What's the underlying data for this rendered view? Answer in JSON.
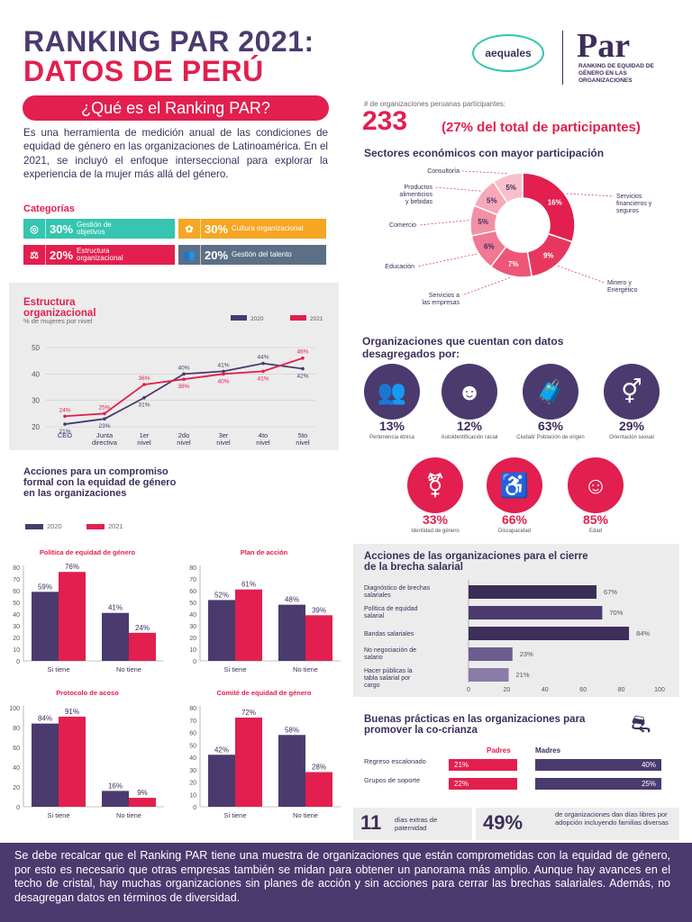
{
  "header": {
    "title_line1": "RANKING PAR 2021:",
    "title_line2": "DATOS DE PERÚ",
    "logo_aequales": "aequales",
    "logo_par": "Par",
    "logo_par_subtitle": "RANKING DE EQUIDAD DE GÉNERO EN LAS ORGANIZACIONES"
  },
  "intro": {
    "heading": "¿Qué es el Ranking PAR?",
    "text": "Es una herramienta de medición anual de las condiciones de equidad de género en las organizaciones de Latinoamérica. En el 2021, se incluyó el enfoque interseccional para explorar la experiencia de la mujer más allá del género."
  },
  "categories": {
    "title": "Categorías",
    "items": [
      {
        "pct": "30%",
        "label": "Gestión de objetivos",
        "color": "#35c5b0",
        "icon": "target-icon"
      },
      {
        "pct": "30%",
        "label": "Cultura organizacional",
        "color": "#f5a623",
        "icon": "culture-icon"
      },
      {
        "pct": "20%",
        "label": "Estructura organizacional",
        "color": "#e21f4e",
        "icon": "balance-icon"
      },
      {
        "pct": "20%",
        "label": "Gestión del talento",
        "color": "#5b6f86",
        "icon": "people-icon"
      }
    ]
  },
  "participants": {
    "label": "# de organizaciones peruanas participantes:",
    "count": "233",
    "share": "(27% del total de participantes)"
  },
  "sectors": {
    "title": "Sectores económicos con mayor participación"
  },
  "structure_chart_labels": {
    "title": "Estructura organizacional",
    "subtitle": "% de mujeres por nivel"
  },
  "actions_formal": {
    "title": "Acciones para un compromiso formal con la equidad de género en las organizaciones",
    "legend_2020": "2020",
    "legend_2021": "2021"
  },
  "disaggregated": {
    "title": "Organizaciones que cuentan con datos desagregados por:",
    "items": [
      {
        "pct": "13%",
        "label": "Pertenencia étnica",
        "color": "#4a3a6e",
        "icon": "people-group-icon"
      },
      {
        "pct": "12%",
        "label": "Autoidentificación racial",
        "color": "#4a3a6e",
        "icon": "person-curly-icon"
      },
      {
        "pct": "63%",
        "label": "Ciudad/ Población de origen",
        "color": "#4a3a6e",
        "icon": "traveler-icon"
      },
      {
        "pct": "29%",
        "label": "Orientación sexual",
        "color": "#4a3a6e",
        "icon": "gender-symbols-icon"
      },
      {
        "pct": "33%",
        "label": "Identidad de género",
        "color": "#e21f4e",
        "icon": "gender-identity-icon"
      },
      {
        "pct": "66%",
        "label": "Discapacidad",
        "color": "#e21f4e",
        "icon": "wheelchair-icon"
      },
      {
        "pct": "85%",
        "label": "Edad",
        "color": "#e21f4e",
        "icon": "age-faces-icon"
      }
    ]
  },
  "wage_gap": {
    "title": "Acciones de las organizaciones para el cierre de la brecha salarial"
  },
  "childcare": {
    "title": "Buenas prácticas en las organizaciones para promover la co-crianza",
    "col_fathers": "Padres",
    "col_mothers": "Madres",
    "rows": [
      {
        "label": "Regreso escalonado",
        "padres": "21%",
        "madres": "40%",
        "padres_value": 21,
        "madres_value": 40
      },
      {
        "label": "Grupos de soporte",
        "padres": "22%",
        "madres": "25%",
        "padres_value": 22,
        "madres_value": 25
      }
    ]
  },
  "kpis": {
    "days_value": "11",
    "days_label": "días extras de paternidad",
    "share_value": "49%",
    "share_label": "de organizaciones dan días libres por adopción incluyendo familias diversas"
  },
  "footer": {
    "text": "Se debe recalcar que el Ranking PAR tiene una muestra de organizaciones que están comprometidas con la equidad de género, por esto es necesario que otras empresas también se midan para obtener un panorama  más amplio.  Aunque hay avances en el techo de cristal, hay muchas organizaciones sin planes de acción y sin acciones para cerrar las brechas salariales. Además, no desagregan datos en términos de diversidad."
  },
  "colors": {
    "purple": "#4a3a6e",
    "red": "#e21f4e",
    "light_red": "#f08fa6"
  },
  "chart_data": [
    {
      "id": "sectors",
      "type": "pie",
      "title": "Sectores económicos con mayor participación",
      "slices": [
        {
          "label": "Servicios financieros y seguros",
          "value": 16,
          "text": "16%",
          "color": "#e21f4e"
        },
        {
          "label": "Minero y Energético",
          "value": 9,
          "text": "9%",
          "color": "#e8375f"
        },
        {
          "label": "Servicios a las empresas",
          "value": 7,
          "text": "7%",
          "color": "#ee5577"
        },
        {
          "label": "Educación",
          "value": 6,
          "text": "6%",
          "color": "#f17792"
        },
        {
          "label": "Comercio",
          "value": 5,
          "text": "5%",
          "color": "#f490a6"
        },
        {
          "label": "Productos alimenticios y bebidas",
          "value": 5,
          "text": "5%",
          "color": "#f7a9ba"
        },
        {
          "label": "Consultoría",
          "value": 5,
          "text": "5%",
          "color": "#f9c0cc"
        }
      ]
    },
    {
      "id": "structure",
      "type": "line",
      "title": "Estructura organizacional",
      "ylabel": "% de mujeres por nivel",
      "categories": [
        "CEO",
        "Junta directiva",
        "1er nivel",
        "2do nivel",
        "3er nivel",
        "4to nivel",
        "5to nivel"
      ],
      "ylim": [
        20,
        50
      ],
      "yticks": [
        20,
        30,
        40,
        50
      ],
      "series": [
        {
          "name": "2020",
          "values": [
            21,
            23,
            31,
            40,
            41,
            44,
            42
          ],
          "color": "#4a3a6e"
        },
        {
          "name": "2021",
          "values": [
            24,
            25,
            36,
            38,
            40,
            41,
            46
          ],
          "color": "#e21f4e"
        }
      ]
    },
    {
      "id": "politica",
      "type": "bar",
      "title": "Política de equidad de género",
      "categories": [
        "Si tiene",
        "No tiene"
      ],
      "ylim": [
        0,
        80
      ],
      "yticks": [
        0,
        10,
        20,
        30,
        40,
        50,
        60,
        70,
        80
      ],
      "series": [
        {
          "name": "2020",
          "values": [
            59,
            41
          ],
          "color": "#4a3a6e"
        },
        {
          "name": "2021",
          "values": [
            76,
            24
          ],
          "color": "#e21f4e"
        }
      ]
    },
    {
      "id": "plan",
      "type": "bar",
      "title": "Plan de acción",
      "categories": [
        "Si tiene",
        "No tiene"
      ],
      "ylim": [
        0,
        80
      ],
      "yticks": [
        0,
        10,
        20,
        30,
        40,
        50,
        60,
        70,
        80
      ],
      "series": [
        {
          "name": "2020",
          "values": [
            52,
            48
          ],
          "color": "#4a3a6e"
        },
        {
          "name": "2021",
          "values": [
            61,
            39
          ],
          "color": "#e21f4e"
        }
      ]
    },
    {
      "id": "acoso",
      "type": "bar",
      "title": "Protocolo de acoso",
      "categories": [
        "Si tiene",
        "No tiene"
      ],
      "ylim": [
        0,
        100
      ],
      "yticks": [
        0,
        20,
        40,
        60,
        80,
        100
      ],
      "series": [
        {
          "name": "2020",
          "values": [
            84,
            16
          ],
          "color": "#4a3a6e"
        },
        {
          "name": "2021",
          "values": [
            91,
            9
          ],
          "color": "#e21f4e"
        }
      ]
    },
    {
      "id": "comite",
      "type": "bar",
      "title": "Comité de equidad de género",
      "categories": [
        "Si tiene",
        "No tiene"
      ],
      "ylim": [
        0,
        80
      ],
      "yticks": [
        0,
        10,
        20,
        30,
        40,
        50,
        60,
        70,
        80
      ],
      "series": [
        {
          "name": "2020",
          "values": [
            42,
            58
          ],
          "color": "#4a3a6e"
        },
        {
          "name": "2021",
          "values": [
            72,
            28
          ],
          "color": "#e21f4e"
        }
      ]
    },
    {
      "id": "wage",
      "type": "bar",
      "orientation": "horizontal",
      "title": "Acciones de las organizaciones para el cierre de la brecha salarial",
      "categories": [
        "Diagnóstico de brechas salariales",
        "Política de equidad salarial",
        "Bandas salariales",
        "No negociación de salario",
        "Hacer públicas la tabla salarial por cargo"
      ],
      "values": [
        67,
        70,
        84,
        23,
        21
      ],
      "xlim": [
        0,
        100
      ],
      "xticks": [
        0,
        20,
        40,
        60,
        80,
        100
      ]
    }
  ]
}
